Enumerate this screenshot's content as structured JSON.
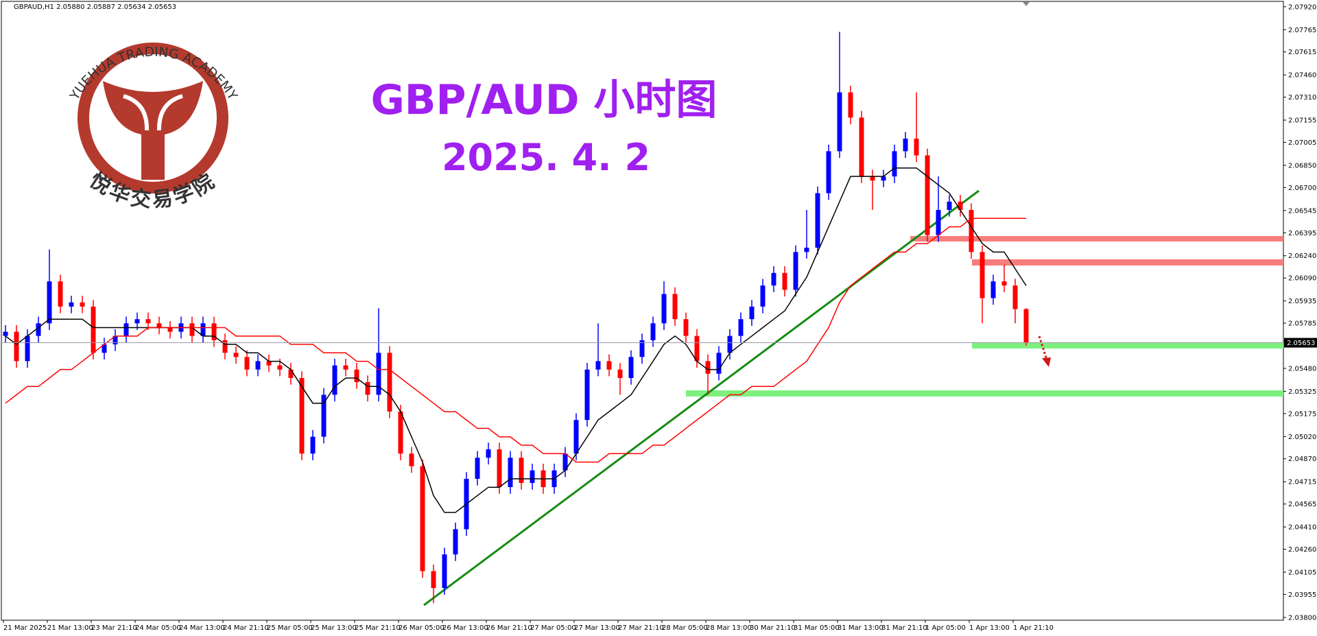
{
  "logo": {
    "name_en": "YUEHUA TRADING ACADEMY",
    "name_cn": "悦华交易学院"
  },
  "chart_data": {
    "type": "candlestick",
    "header": "GBPAUD,H1  2.05880 2.05887 2.05634 2.05653",
    "title": "GBP/AUD 小时图",
    "subtitle": "2025. 4. 2",
    "up_color": "#0000ff",
    "down_color": "#ff0000",
    "categories": [
      "21 Mar 2025",
      null,
      null,
      null,
      "21 Mar 13:00",
      null,
      null,
      null,
      "23 Mar 21:10",
      null,
      null,
      null,
      "24 Mar 05:00",
      null,
      null,
      null,
      "24 Mar 13:00",
      null,
      null,
      null,
      "24 Mar 21:10",
      null,
      null,
      null,
      "25 Mar 05:00",
      null,
      null,
      null,
      "25 Mar 13:00",
      null,
      null,
      null,
      "25 Mar 21:10",
      null,
      null,
      null,
      "26 Mar 05:00",
      null,
      null,
      null,
      "26 Mar 13:00",
      null,
      null,
      null,
      "26 Mar 21:10",
      null,
      null,
      null,
      "27 Mar 05:00",
      null,
      null,
      null,
      "27 Mar 13:00",
      null,
      null,
      null,
      "27 Mar 21:10",
      null,
      null,
      null,
      "28 Mar 05:00",
      null,
      null,
      null,
      "28 Mar 13:00",
      null,
      null,
      null,
      "30 Mar 21:10",
      null,
      null,
      null,
      "31 Mar 05:00",
      null,
      null,
      null,
      "31 Mar 13:00",
      null,
      null,
      null,
      "31 Mar 21:10",
      null,
      null,
      null,
      "1 Apr 05:00",
      null,
      null,
      null,
      "1 Apr 13:00",
      null,
      null,
      null,
      "1 Apr 21:10",
      null
    ],
    "open": [
      2.05699,
      2.05727,
      2.05529,
      2.05699,
      2.05784,
      2.06067,
      2.05897,
      2.05925,
      2.05897,
      2.05585,
      2.05642,
      2.05699,
      2.05784,
      2.05812,
      2.05784,
      2.05755,
      2.05727,
      2.05784,
      2.05699,
      2.05784,
      2.0567,
      2.05585,
      2.05557,
      2.05472,
      2.05529,
      2.055,
      2.05472,
      2.05415,
      2.04905,
      2.05019,
      2.05302,
      2.055,
      2.05472,
      2.05387,
      2.05302,
      2.05585,
      2.05189,
      2.04905,
      2.0482,
      2.04112,
      2.03998,
      2.04225,
      2.04395,
      2.04735,
      2.04877,
      2.04934,
      2.04679,
      2.04877,
      2.04707,
      2.04792,
      2.04679,
      2.04792,
      2.04905,
      2.05132,
      2.05472,
      2.05529,
      2.05472,
      2.05415,
      2.05557,
      2.0567,
      2.05784,
      2.05982,
      2.05812,
      2.05699,
      2.05529,
      2.05444,
      2.05585,
      2.05699,
      2.05812,
      2.05897,
      2.06039,
      2.06124,
      2.0601,
      2.06265,
      2.06294,
      2.06662,
      2.06945,
      2.07342,
      2.07172,
      2.06775,
      2.06747,
      2.06775,
      2.06945,
      2.0703,
      2.06917,
      2.06379,
      2.06549,
      2.06605,
      2.06549,
      2.06265,
      2.05954,
      2.06067,
      2.06039,
      2.0588
    ],
    "high": [
      2.05772,
      2.05772,
      2.05744,
      2.05829,
      2.06282,
      2.06112,
      2.0597,
      2.0597,
      2.05942,
      2.05687,
      2.05744,
      2.05829,
      2.05857,
      2.05857,
      2.05829,
      2.058,
      2.05829,
      2.05829,
      2.05829,
      2.05829,
      2.05715,
      2.0563,
      2.05602,
      2.05574,
      2.05574,
      2.05545,
      2.05517,
      2.0546,
      2.05064,
      2.05347,
      2.05545,
      2.05545,
      2.05517,
      2.05432,
      2.05886,
      2.0563,
      2.05234,
      2.0495,
      2.04865,
      2.04157,
      2.0427,
      2.0444,
      2.0478,
      2.04922,
      2.04979,
      2.04979,
      2.04922,
      2.04922,
      2.04837,
      2.04837,
      2.04837,
      2.0495,
      2.05177,
      2.05517,
      2.05784,
      2.05574,
      2.05517,
      2.05602,
      2.05715,
      2.05829,
      2.06067,
      2.06027,
      2.05857,
      2.05744,
      2.05574,
      2.0563,
      2.05744,
      2.05857,
      2.05942,
      2.06084,
      2.06169,
      2.06169,
      2.0631,
      2.06549,
      2.06707,
      2.0699,
      2.0775,
      2.07387,
      2.07217,
      2.0682,
      2.0682,
      2.0699,
      2.07075,
      2.07342,
      2.06962,
      2.06775,
      2.0665,
      2.0665,
      2.06594,
      2.0631,
      2.06112,
      2.0618,
      2.06084,
      2.05887
    ],
    "low": [
      2.05654,
      2.05484,
      2.05484,
      2.05654,
      2.05739,
      2.05852,
      2.05852,
      2.05852,
      2.0554,
      2.0554,
      2.05597,
      2.05654,
      2.05739,
      2.05739,
      2.0571,
      2.05682,
      2.05682,
      2.05654,
      2.05654,
      2.05625,
      2.0554,
      2.05512,
      2.05427,
      2.05427,
      2.05455,
      2.05427,
      2.0537,
      2.0486,
      2.0486,
      2.04974,
      2.05257,
      2.05427,
      2.05342,
      2.05257,
      2.05257,
      2.05144,
      2.0486,
      2.04775,
      2.04067,
      2.03896,
      2.03953,
      2.0418,
      2.0435,
      2.0469,
      2.04832,
      2.04634,
      2.04634,
      2.04662,
      2.04662,
      2.04634,
      2.04634,
      2.04747,
      2.0486,
      2.05087,
      2.05427,
      2.05427,
      2.05302,
      2.0537,
      2.05512,
      2.05625,
      2.05739,
      2.05767,
      2.05654,
      2.05484,
      2.05302,
      2.05399,
      2.0554,
      2.05654,
      2.05767,
      2.05852,
      2.05994,
      2.05965,
      2.05965,
      2.0622,
      2.06249,
      2.06617,
      2.069,
      2.07127,
      2.0673,
      2.06549,
      2.06702,
      2.0673,
      2.069,
      2.06872,
      2.06334,
      2.06334,
      2.06504,
      2.06504,
      2.0622,
      2.05784,
      2.05909,
      2.05994,
      2.05784,
      2.05634
    ],
    "close": [
      2.05727,
      2.05529,
      2.05699,
      2.05784,
      2.06067,
      2.05897,
      2.05925,
      2.05897,
      2.05585,
      2.05642,
      2.05699,
      2.05784,
      2.05812,
      2.05784,
      2.05755,
      2.05727,
      2.05784,
      2.05699,
      2.05784,
      2.0567,
      2.05585,
      2.05557,
      2.05472,
      2.05529,
      2.055,
      2.05472,
      2.05415,
      2.04905,
      2.05019,
      2.05302,
      2.055,
      2.05472,
      2.05387,
      2.05302,
      2.05585,
      2.05189,
      2.04905,
      2.0482,
      2.04112,
      2.03998,
      2.04225,
      2.04395,
      2.04735,
      2.04877,
      2.04934,
      2.04679,
      2.04877,
      2.04707,
      2.04792,
      2.04679,
      2.04792,
      2.04905,
      2.05132,
      2.05472,
      2.05529,
      2.05472,
      2.05415,
      2.05557,
      2.0567,
      2.05784,
      2.05982,
      2.05812,
      2.05699,
      2.05529,
      2.05444,
      2.05585,
      2.05699,
      2.05812,
      2.05897,
      2.06039,
      2.06124,
      2.0601,
      2.06265,
      2.06294,
      2.06662,
      2.06945,
      2.07342,
      2.07172,
      2.06775,
      2.06747,
      2.06775,
      2.06945,
      2.0703,
      2.06917,
      2.06379,
      2.06549,
      2.06605,
      2.06549,
      2.06265,
      2.05954,
      2.06067,
      2.06039,
      2.0588,
      2.05653
    ],
    "lines": [
      {
        "color": "#000000",
        "values": [
          2.05698,
          2.05642,
          2.05698,
          2.05755,
          2.05812,
          2.05812,
          2.05812,
          2.05812,
          2.05755,
          2.05755,
          2.05755,
          2.05755,
          2.05755,
          2.05755,
          2.05755,
          2.05755,
          2.05755,
          2.05755,
          2.05698,
          2.05698,
          2.05642,
          2.05642,
          2.05585,
          2.05585,
          2.05528,
          2.05528,
          2.05472,
          2.05358,
          2.05245,
          2.05245,
          2.05358,
          2.05415,
          2.05415,
          2.05358,
          2.05358,
          2.05302,
          2.05188,
          2.05018,
          2.04848,
          2.04622,
          2.04508,
          2.04508,
          2.04565,
          2.04622,
          2.04678,
          2.04678,
          2.04735,
          2.04735,
          2.04735,
          2.04735,
          2.04735,
          2.04792,
          2.04905,
          2.05018,
          2.05132,
          2.05188,
          2.05245,
          2.05302,
          2.05415,
          2.05528,
          2.05642,
          2.05698,
          2.05642,
          2.05528,
          2.05472,
          2.05472,
          2.05585,
          2.05642,
          2.05698,
          2.05755,
          2.05812,
          2.05868,
          2.05982,
          2.06095,
          2.06265,
          2.06435,
          2.06605,
          2.06775,
          2.06775,
          2.06775,
          2.06775,
          2.06832,
          2.06832,
          2.06832,
          2.06775,
          2.06718,
          2.06662,
          2.06548,
          2.06435,
          2.06322,
          2.06265,
          2.06265,
          2.06152,
          2.06038
        ]
      },
      {
        "color": "#ff0000",
        "values": [
          2.05245,
          2.05302,
          2.05358,
          2.05358,
          2.05415,
          2.05472,
          2.05472,
          2.05528,
          2.05585,
          2.05642,
          2.05698,
          2.05698,
          2.05698,
          2.05755,
          2.05755,
          2.05755,
          2.05755,
          2.05755,
          2.05755,
          2.05755,
          2.05755,
          2.05698,
          2.05698,
          2.05698,
          2.05698,
          2.05698,
          2.05642,
          2.05642,
          2.05642,
          2.05585,
          2.05585,
          2.05585,
          2.05528,
          2.05528,
          2.05472,
          2.05472,
          2.05415,
          2.05358,
          2.05302,
          2.05245,
          2.05188,
          2.05188,
          2.05132,
          2.05075,
          2.05075,
          2.05018,
          2.05018,
          2.04962,
          2.04962,
          2.04905,
          2.04905,
          2.04905,
          2.04848,
          2.04848,
          2.04848,
          2.04905,
          2.04905,
          2.04905,
          2.04905,
          2.04962,
          2.04962,
          2.05018,
          2.05075,
          2.05132,
          2.05188,
          2.05245,
          2.05302,
          2.05302,
          2.05358,
          2.05358,
          2.05358,
          2.05415,
          2.05472,
          2.05528,
          2.05642,
          2.05755,
          2.05925,
          2.06038,
          2.06095,
          2.06152,
          2.06208,
          2.06265,
          2.06265,
          2.06322,
          2.06322,
          2.06378,
          2.06435,
          2.06435,
          2.06492,
          2.06492,
          2.06492,
          2.06492,
          2.06492,
          2.06492
        ]
      }
    ],
    "ylim": [
      2.03781,
      2.07956
    ],
    "yticks": [
      {
        "value": 2.0792,
        "label": "2.07920"
      },
      2.07765,
      2.07615,
      {
        "value": 2.0746,
        "label": "2.07460"
      },
      {
        "value": 2.0731,
        "label": "2.07310"
      },
      2.07155,
      2.07005,
      {
        "value": 2.0685,
        "label": "2.06850"
      },
      {
        "value": 2.067,
        "label": "2.06700"
      },
      2.06545,
      2.06395,
      {
        "value": 2.0624,
        "label": "2.06240"
      },
      {
        "value": 2.0609,
        "label": "2.06090"
      },
      2.05935,
      2.05785,
      {
        "value": 2.0548,
        "label": "2.05480"
      },
      2.05325,
      2.05175,
      {
        "value": 2.0502,
        "label": "2.05020"
      },
      {
        "value": 2.0487,
        "label": "2.04870"
      },
      2.04715,
      2.04565,
      {
        "value": 2.0441,
        "label": "2.04410"
      },
      {
        "value": 2.0426,
        "label": "2.04260"
      },
      2.04105,
      2.03955,
      {
        "value": 2.038,
        "label": "2.03800"
      }
    ],
    "grid": false
  }
}
